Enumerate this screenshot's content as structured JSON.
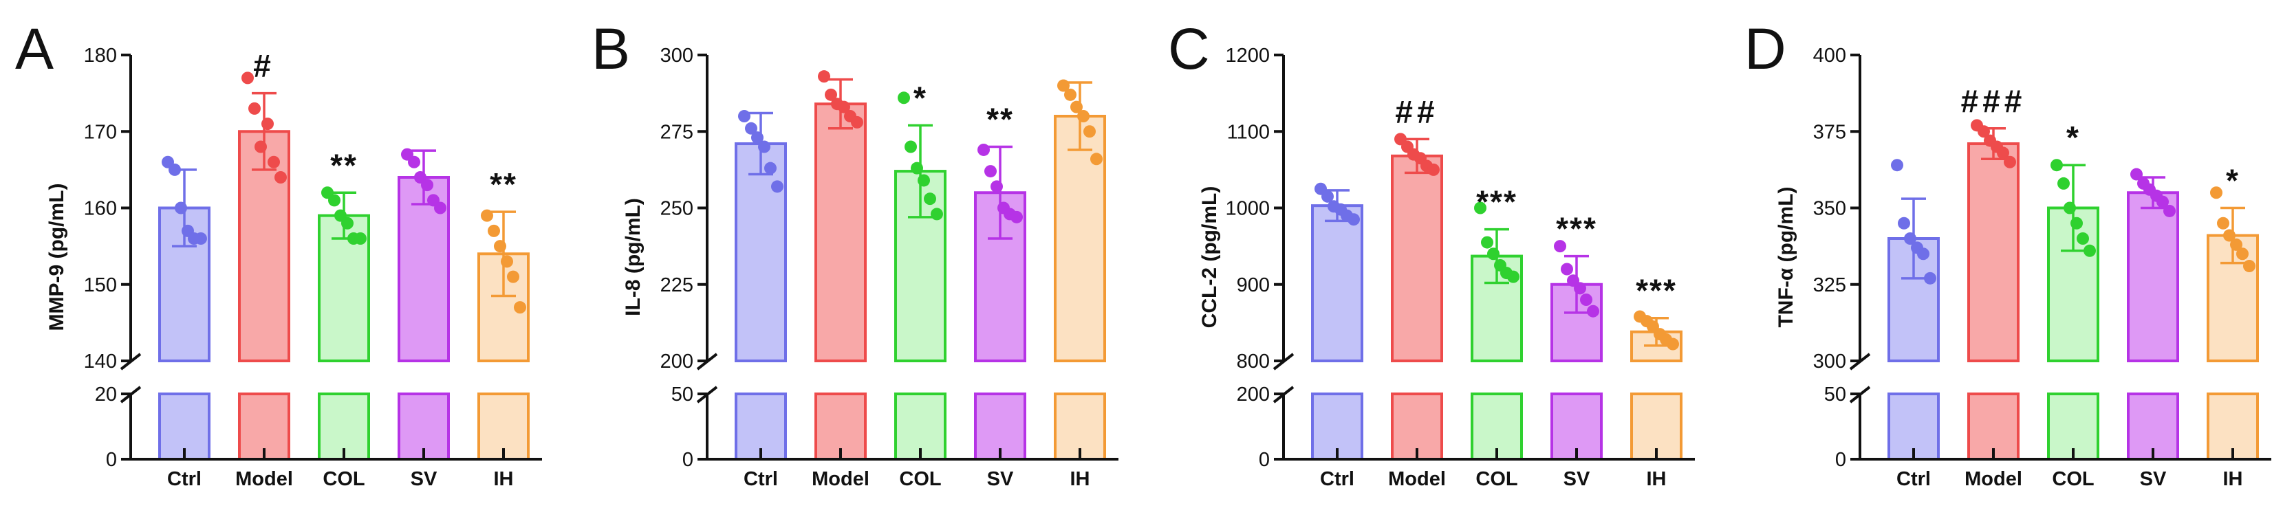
{
  "figure": {
    "panel_count": 4
  },
  "chart_data": [
    {
      "panel_letter": "A",
      "type": "bar",
      "title": "",
      "xlabel": "",
      "ylabel": "MMP-9 (pg/mL)",
      "categories": [
        "Ctrl",
        "Model",
        "COL",
        "SV",
        "IH"
      ],
      "colors": [
        "#6f6fe8",
        "#ee4b4b",
        "#2fd12f",
        "#b633e6",
        "#f39a35"
      ],
      "fills": [
        "#c2c2f8",
        "#f8a8a8",
        "#c9f7c9",
        "#de99f5",
        "#fce1c2"
      ],
      "means": [
        160,
        170,
        159,
        164,
        154
      ],
      "sds": [
        5,
        5,
        3,
        3.5,
        5.5
      ],
      "points": [
        [
          166,
          165,
          160,
          157,
          156,
          156
        ],
        [
          177,
          173,
          168,
          171,
          166,
          164
        ],
        [
          162,
          161,
          159,
          158,
          156,
          156
        ],
        [
          167,
          166,
          164,
          163,
          161,
          160
        ],
        [
          159,
          157,
          155,
          153,
          151,
          147
        ]
      ],
      "significance": [
        "",
        "#",
        "**",
        "",
        "**"
      ],
      "upper_ylim": [
        140,
        180
      ],
      "upper_yticks": [
        "140",
        "150",
        "160",
        "170",
        "180"
      ],
      "lower_ylim": [
        0,
        20
      ],
      "lower_yticks": [
        "0",
        "20"
      ]
    },
    {
      "panel_letter": "B",
      "type": "bar",
      "title": "",
      "xlabel": "",
      "ylabel": "IL-8 (pg/mL)",
      "categories": [
        "Ctrl",
        "Model",
        "COL",
        "SV",
        "IH"
      ],
      "colors": [
        "#6f6fe8",
        "#ee4b4b",
        "#2fd12f",
        "#b633e6",
        "#f39a35"
      ],
      "fills": [
        "#c2c2f8",
        "#f8a8a8",
        "#c9f7c9",
        "#de99f5",
        "#fce1c2"
      ],
      "means": [
        271,
        284,
        262,
        255,
        280
      ],
      "sds": [
        10,
        8,
        15,
        15,
        11
      ],
      "points": [
        [
          280,
          276,
          273,
          270,
          263,
          257
        ],
        [
          293,
          287,
          284,
          283,
          280,
          278
        ],
        [
          286,
          270,
          263,
          259,
          253,
          248
        ],
        [
          269,
          262,
          257,
          250,
          248,
          247
        ],
        [
          290,
          287,
          283,
          280,
          275,
          266
        ]
      ],
      "significance": [
        "",
        "",
        "*",
        "**",
        ""
      ],
      "upper_ylim": [
        200,
        300
      ],
      "upper_yticks": [
        "200",
        "225",
        "250",
        "275",
        "300"
      ],
      "lower_ylim": [
        0,
        50
      ],
      "lower_yticks": [
        "0",
        "50"
      ]
    },
    {
      "panel_letter": "C",
      "type": "bar",
      "title": "",
      "xlabel": "",
      "ylabel": "CCL-2 (pg/mL)",
      "categories": [
        "Ctrl",
        "Model",
        "COL",
        "SV",
        "IH"
      ],
      "colors": [
        "#6f6fe8",
        "#ee4b4b",
        "#2fd12f",
        "#b633e6",
        "#f39a35"
      ],
      "fills": [
        "#c2c2f8",
        "#f8a8a8",
        "#c9f7c9",
        "#de99f5",
        "#fce1c2"
      ],
      "means": [
        1003,
        1068,
        937,
        900,
        838
      ],
      "sds": [
        20,
        22,
        35,
        37,
        18
      ],
      "points": [
        [
          1025,
          1015,
          1002,
          998,
          990,
          985
        ],
        [
          1090,
          1080,
          1070,
          1065,
          1055,
          1050
        ],
        [
          1000,
          955,
          940,
          925,
          915,
          910
        ],
        [
          950,
          920,
          905,
          895,
          880,
          865
        ],
        [
          858,
          852,
          845,
          835,
          828,
          822
        ]
      ],
      "significance": [
        "",
        "##",
        "***",
        "***",
        "***"
      ],
      "upper_ylim": [
        800,
        1200
      ],
      "upper_yticks": [
        "800",
        "900",
        "1000",
        "1100",
        "1200"
      ],
      "lower_ylim": [
        0,
        200
      ],
      "lower_yticks": [
        "0",
        "200"
      ]
    },
    {
      "panel_letter": "D",
      "type": "bar",
      "title": "",
      "xlabel": "",
      "ylabel": "TNF-α (pg/mL)",
      "categories": [
        "Ctrl",
        "Model",
        "COL",
        "SV",
        "IH"
      ],
      "colors": [
        "#6f6fe8",
        "#ee4b4b",
        "#2fd12f",
        "#b633e6",
        "#f39a35"
      ],
      "fills": [
        "#c2c2f8",
        "#f8a8a8",
        "#c9f7c9",
        "#de99f5",
        "#fce1c2"
      ],
      "means": [
        340,
        371,
        350,
        355,
        341
      ],
      "sds": [
        13,
        5,
        14,
        5,
        9
      ],
      "points": [
        [
          364,
          345,
          340,
          337,
          335,
          327
        ],
        [
          377,
          375,
          372,
          370,
          368,
          365
        ],
        [
          364,
          358,
          350,
          345,
          340,
          336
        ],
        [
          361,
          358,
          356,
          354,
          352,
          349
        ],
        [
          355,
          345,
          341,
          338,
          335,
          331
        ]
      ],
      "significance": [
        "",
        "###",
        "*",
        "",
        "*"
      ],
      "upper_ylim": [
        300,
        400
      ],
      "upper_yticks": [
        "300",
        "325",
        "350",
        "375",
        "400"
      ],
      "lower_ylim": [
        0,
        50
      ],
      "lower_yticks": [
        "0",
        "50"
      ]
    }
  ]
}
